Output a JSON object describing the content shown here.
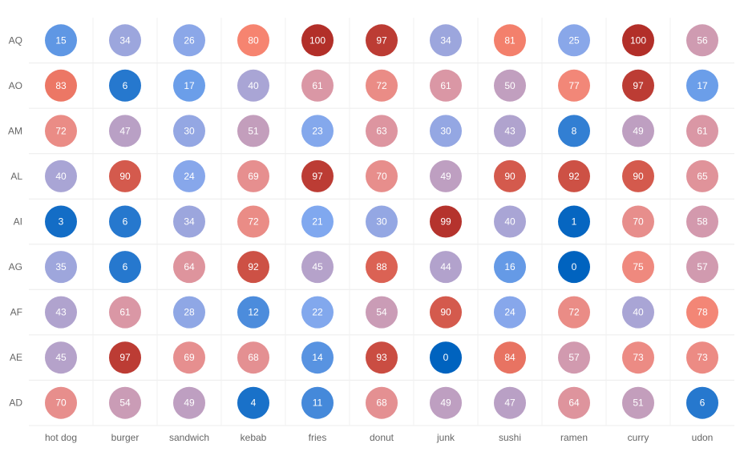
{
  "chart_data": {
    "type": "heatmap",
    "title": "",
    "xlabel": "",
    "ylabel": "",
    "x_categories": [
      "hot dog",
      "burger",
      "sandwich",
      "kebab",
      "fries",
      "donut",
      "junk",
      "sushi",
      "ramen",
      "curry",
      "udon"
    ],
    "y_categories": [
      "AQ",
      "AO",
      "AM",
      "AL",
      "AI",
      "AG",
      "AF",
      "AE",
      "AD"
    ],
    "values": [
      [
        15,
        34,
        26,
        80,
        100,
        97,
        34,
        81,
        25,
        100,
        56
      ],
      [
        83,
        6,
        17,
        40,
        61,
        72,
        61,
        50,
        77,
        97,
        17
      ],
      [
        72,
        47,
        30,
        51,
        23,
        63,
        30,
        43,
        8,
        49,
        61
      ],
      [
        40,
        90,
        24,
        69,
        97,
        70,
        49,
        90,
        92,
        90,
        65
      ],
      [
        3,
        6,
        34,
        72,
        21,
        30,
        99,
        40,
        1,
        70,
        58
      ],
      [
        35,
        6,
        64,
        92,
        45,
        88,
        44,
        16,
        0,
        75,
        57
      ],
      [
        43,
        61,
        28,
        12,
        22,
        54,
        90,
        24,
        72,
        40,
        78
      ],
      [
        45,
        97,
        69,
        68,
        14,
        93,
        0,
        84,
        57,
        73,
        73
      ],
      [
        70,
        54,
        49,
        4,
        11,
        68,
        49,
        47,
        64,
        51,
        6
      ]
    ],
    "value_range": [
      0,
      100
    ],
    "color_scale": [
      "#0063bf",
      "#7ea8f0",
      "#a9a5d5",
      "#d898a8",
      "#f68470",
      "#b22f29"
    ],
    "marker": "circle",
    "grid": true,
    "legend": "none"
  }
}
